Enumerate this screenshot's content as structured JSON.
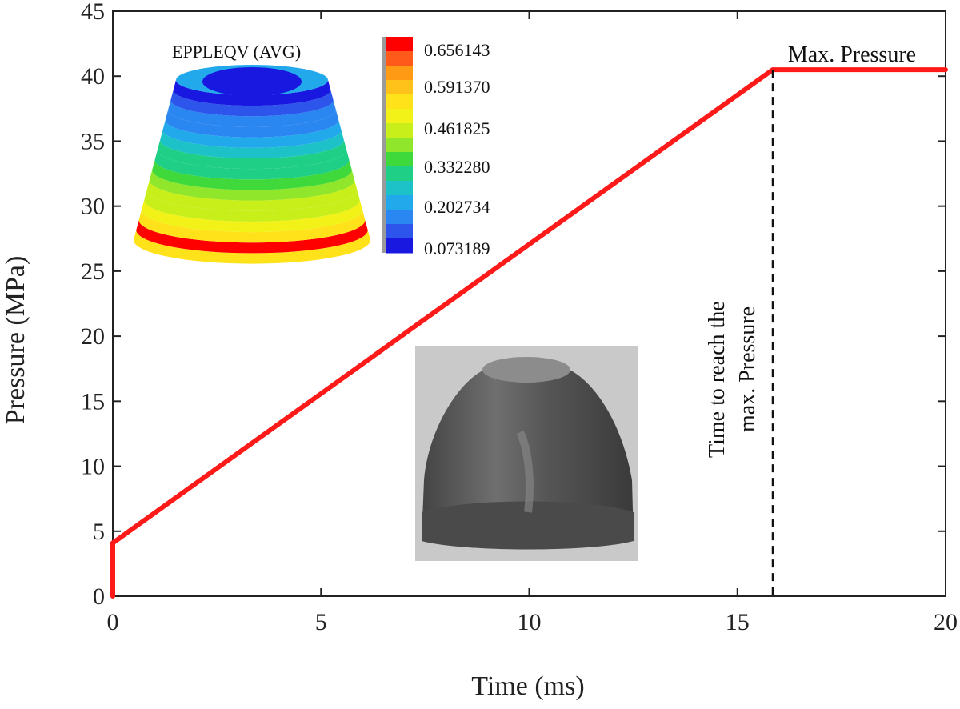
{
  "chart_data": {
    "type": "line",
    "title": "",
    "xlabel": "Time (ms)",
    "ylabel": "Pressure (MPa)",
    "xlim": [
      0,
      20
    ],
    "ylim": [
      0,
      45
    ],
    "xticks": [
      0,
      5,
      10,
      15,
      20
    ],
    "yticks": [
      0,
      5,
      10,
      15,
      20,
      25,
      30,
      35,
      40,
      45
    ],
    "grid": false,
    "series": [
      {
        "name": "Pressure",
        "color": "#ff1a1a",
        "x": [
          0,
          0,
          15.85,
          20
        ],
        "y": [
          0,
          4.1,
          40.5,
          40.5
        ]
      }
    ],
    "reference_line": {
      "x": 15.85,
      "style": "dashed",
      "label": "Time to reach the max. Pressure",
      "label_lines": [
        "Time to reach the",
        "max. Pressure"
      ]
    },
    "annotations": [
      {
        "text": "Max. Pressure"
      }
    ],
    "inset_fe_model": {
      "title": "EPPLEQV (AVG)",
      "colorbar_labels": [
        "0.656143",
        "0.591370",
        "0.461825",
        "0.332280",
        "0.202734",
        "0.073189"
      ],
      "colormap": [
        "#ff0000",
        "#ff5a1a",
        "#ff9a14",
        "#ffc21a",
        "#ffe21a",
        "#f2f218",
        "#c9ef1a",
        "#8fe62a",
        "#3fd93c",
        "#1fcf86",
        "#1cc2c8",
        "#22a9ec",
        "#2a86f0",
        "#2d55ec",
        "#1818e0"
      ]
    },
    "inset_photo": {
      "subject": "formed metal part"
    }
  }
}
